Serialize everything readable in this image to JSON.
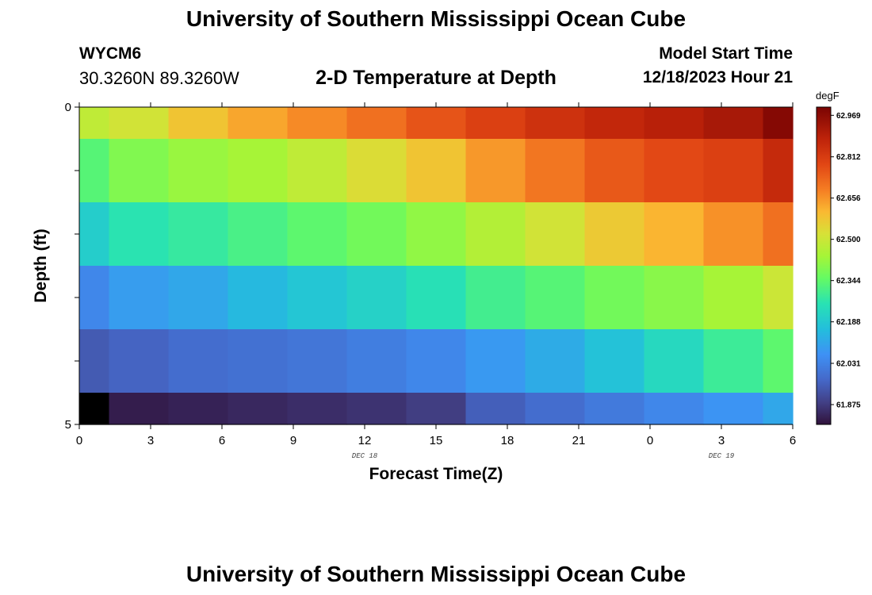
{
  "header": {
    "title": "University of Southern Mississippi Ocean Cube",
    "station_id": "WYCM6",
    "coordinates": "30.3260N  89.3260W",
    "plot_title": "2-D Temperature at Depth",
    "model_start_label": "Model Start Time",
    "model_start_value": "12/18/2023 Hour 21"
  },
  "footer": {
    "title": "University of Southern Mississippi Ocean Cube"
  },
  "chart_data": {
    "type": "heatmap",
    "title": "2-D Temperature at Depth",
    "xlabel": "Forecast Time(Z)",
    "ylabel": "Depth (ft)",
    "x_tick_labels": [
      "0",
      "3",
      "6",
      "9",
      "12",
      "15",
      "18",
      "21",
      "0",
      "3",
      "6"
    ],
    "x_date_labels": [
      {
        "label": "DEC 18",
        "at_tick_index": 4
      },
      {
        "label": "DEC 19",
        "at_tick_index": 9
      }
    ],
    "x_range_hours": [
      0,
      30
    ],
    "y_tick_labels": [
      "0",
      "5"
    ],
    "y_range": [
      0,
      5
    ],
    "time_edges_hours": [
      0,
      1.25,
      3.75,
      6.25,
      8.75,
      11.25,
      13.75,
      16.25,
      18.75,
      21.25,
      23.75,
      26.25,
      28.75,
      30
    ],
    "depth_edges_ft": [
      0,
      0.5,
      1.5,
      2.5,
      3.5,
      4.5,
      5
    ],
    "values": [
      [
        62.48,
        62.51,
        62.58,
        62.63,
        62.67,
        62.71,
        62.76,
        62.8,
        62.84,
        62.87,
        62.89,
        62.92,
        62.98
      ],
      [
        62.33,
        62.39,
        62.42,
        62.44,
        62.48,
        62.53,
        62.58,
        62.65,
        62.7,
        62.75,
        62.78,
        62.8,
        62.86
      ],
      [
        62.2,
        62.26,
        62.28,
        62.31,
        62.34,
        62.37,
        62.41,
        62.46,
        62.51,
        62.57,
        62.61,
        62.66,
        62.71
      ],
      [
        62.04,
        62.09,
        62.11,
        62.15,
        62.18,
        62.21,
        62.25,
        62.3,
        62.33,
        62.37,
        62.4,
        62.44,
        62.5
      ],
      [
        61.94,
        61.96,
        61.98,
        61.99,
        62.0,
        62.02,
        62.04,
        62.08,
        62.12,
        62.17,
        62.23,
        62.29,
        62.34
      ],
      [
        61.78,
        61.82,
        61.83,
        61.84,
        61.85,
        61.86,
        61.88,
        61.95,
        61.98,
        62.01,
        62.04,
        62.07,
        62.11
      ]
    ],
    "colorbar": {
      "unit": "degF",
      "min": 61.8,
      "max": 63.0,
      "tick_labels": [
        "61.875",
        "62.031",
        "62.188",
        "62.344",
        "62.500",
        "62.656",
        "62.812",
        "62.969"
      ],
      "tick_values": [
        61.875,
        62.031,
        62.188,
        62.344,
        62.5,
        62.656,
        62.812,
        62.969
      ]
    }
  }
}
